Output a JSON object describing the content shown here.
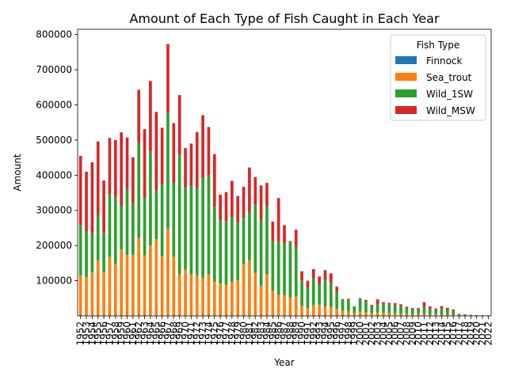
{
  "chart_data": {
    "type": "bar",
    "stacked": true,
    "title": "Amount of Each Type of Fish Caught in Each Year",
    "xlabel": "Year",
    "ylabel": "Amount",
    "ylim": [
      0,
      815000
    ],
    "yticks": [
      100000,
      200000,
      300000,
      400000,
      500000,
      600000,
      700000,
      800000
    ],
    "legend": {
      "title": "Fish Type",
      "position": "top-right"
    },
    "categories": [
      "1952",
      "1953",
      "1954",
      "1955",
      "1956",
      "1957",
      "1958",
      "1959",
      "1960",
      "1961",
      "1962",
      "1963",
      "1964",
      "1965",
      "1966",
      "1967",
      "1968",
      "1969",
      "1970",
      "1971",
      "1972",
      "1973",
      "1974",
      "1975",
      "1976",
      "1977",
      "1978",
      "1979",
      "1980",
      "1981",
      "1982",
      "1983",
      "1984",
      "1985",
      "1986",
      "1987",
      "1988",
      "1989",
      "1990",
      "1991",
      "1992",
      "1993",
      "1994",
      "1995",
      "1996",
      "1997",
      "1998",
      "1999",
      "2000",
      "2001",
      "2002",
      "2003",
      "2004",
      "2005",
      "2006",
      "2007",
      "2008",
      "2009",
      "2010",
      "2011",
      "2012",
      "2013",
      "2014",
      "2015",
      "2016",
      "2017",
      "2018",
      "2019",
      "2020",
      "2021",
      "2022"
    ],
    "series": [
      {
        "name": "Finnock",
        "color": "#1f77b4",
        "values": [
          0,
          0,
          0,
          0,
          0,
          0,
          0,
          0,
          0,
          0,
          0,
          0,
          0,
          0,
          0,
          0,
          0,
          0,
          0,
          0,
          0,
          0,
          0,
          0,
          0,
          0,
          0,
          0,
          0,
          0,
          0,
          0,
          0,
          0,
          0,
          0,
          0,
          0,
          0,
          0,
          0,
          0,
          0,
          0,
          0,
          0,
          0,
          0,
          0,
          0,
          0,
          0,
          0,
          0,
          0,
          0,
          0,
          0,
          0,
          0,
          0,
          0,
          0,
          0,
          0,
          0,
          0,
          0,
          0,
          0,
          0
        ]
      },
      {
        "name": "Sea_trout",
        "color": "#ff7f0e",
        "values": [
          115000,
          110000,
          125000,
          158000,
          125000,
          168000,
          148000,
          190000,
          173000,
          173000,
          222000,
          172000,
          200000,
          218000,
          170000,
          248000,
          168000,
          118000,
          132000,
          118000,
          115000,
          108000,
          118000,
          98000,
          92000,
          88000,
          98000,
          102000,
          148000,
          158000,
          122000,
          85000,
          118000,
          72000,
          60000,
          58000,
          52000,
          55000,
          28000,
          22000,
          30000,
          32000,
          27000,
          25000,
          20000,
          14000,
          12000,
          8000,
          12000,
          10000,
          8000,
          10000,
          8000,
          8000,
          7000,
          6000,
          5000,
          4000,
          5000,
          5000,
          4000,
          4000,
          3000,
          3000,
          2500,
          2000,
          1500,
          1000,
          800,
          600,
          500
        ]
      },
      {
        "name": "Wild_1SW",
        "color": "#2ca02c",
        "values": [
          143000,
          130000,
          110000,
          128000,
          110000,
          178000,
          190000,
          122000,
          188000,
          148000,
          270000,
          162000,
          268000,
          138000,
          205000,
          330000,
          210000,
          340000,
          232000,
          252000,
          248000,
          285000,
          282000,
          212000,
          180000,
          182000,
          183000,
          162000,
          132000,
          138000,
          195000,
          188000,
          193000,
          140000,
          152000,
          148000,
          158000,
          142000,
          72000,
          58000,
          78000,
          58000,
          75000,
          68000,
          48000,
          32000,
          35000,
          18000,
          35000,
          30000,
          18000,
          22000,
          26000,
          24000,
          24000,
          22000,
          16000,
          14000,
          12000,
          22000,
          16000,
          12000,
          18000,
          14000,
          12000,
          3000,
          2000,
          1500,
          1000,
          800,
          600
        ]
      },
      {
        "name": "Wild_MSW",
        "color": "#d62728",
        "values": [
          197000,
          170000,
          202000,
          210000,
          150000,
          160000,
          162000,
          210000,
          146000,
          130000,
          151000,
          197000,
          200000,
          224000,
          160000,
          195000,
          170000,
          170000,
          113000,
          120000,
          160000,
          178000,
          137000,
          150000,
          73000,
          82000,
          103000,
          77000,
          87000,
          126000,
          78000,
          98000,
          67000,
          56000,
          123000,
          52000,
          3000,
          48000,
          27000,
          20000,
          25000,
          22000,
          28000,
          28000,
          15000,
          2000,
          2000,
          1000,
          3000,
          5000,
          5000,
          15000,
          5000,
          5000,
          5000,
          5000,
          5000,
          4000,
          5000,
          12000,
          7000,
          5000,
          7000,
          6000,
          4000,
          1000,
          1000,
          500,
          300,
          200,
          200
        ]
      }
    ]
  }
}
